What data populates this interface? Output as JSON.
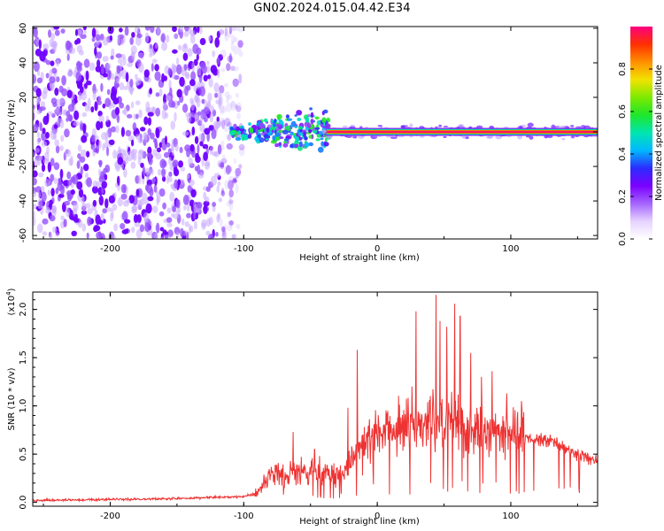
{
  "title": "GN02.2024.015.04.42.E34",
  "chart_data": [
    {
      "type": "heatmap",
      "xlabel": "Height of straight line (km)",
      "ylabel": "Frequency (Hz)",
      "xlim": [
        -258,
        165
      ],
      "ylim": [
        -62,
        61
      ],
      "x_ticks": [
        -200,
        -100,
        0,
        100
      ],
      "x_tick_labels": [
        "-200",
        "-100",
        "0",
        "100"
      ],
      "y_ticks": [
        60,
        40,
        20,
        0,
        -20,
        -40,
        -60
      ],
      "y_tick_labels": [
        "60",
        "40",
        "20",
        "0",
        "-20",
        "-40",
        "-60"
      ],
      "features": {
        "broadband_noise_region_x": [
          -258,
          -108
        ],
        "tone_frequency": 0,
        "tone_region_x": [
          -115,
          165
        ],
        "disturbed_segment_x": [
          -110,
          -35
        ]
      },
      "colorbar": {
        "label": "Normalized spectral amplitude",
        "range": [
          0,
          1
        ],
        "ticks": [
          0.0,
          0.2,
          0.4,
          0.6,
          0.8
        ],
        "tick_labels": [
          "0.0",
          "0.2",
          "0.4",
          "0.6",
          "0.8"
        ],
        "colormap": [
          "#ffffff",
          "#e6d3ff",
          "#a564ff",
          "#7a00ff",
          "#2c2cff",
          "#00b8ff",
          "#00e5b0",
          "#1ee62a",
          "#7dea00",
          "#f2e200",
          "#ff8f00",
          "#ff3000",
          "#ff007f"
        ]
      }
    },
    {
      "type": "line",
      "xlabel": "Height of straight line (km)",
      "ylabel": "SNR (10 * v/v)",
      "scale_note": "(x10",
      "scale_exponent": "4",
      "xlim": [
        -258,
        165
      ],
      "ylim": [
        -0.04,
        2.18
      ],
      "x_ticks": [
        -200,
        -100,
        0,
        100
      ],
      "x_tick_labels": [
        "-200",
        "-100",
        "0",
        "100"
      ],
      "y_ticks": [
        0.0,
        0.5,
        1.0,
        1.5,
        2.0
      ],
      "y_tick_labels": [
        "0.0",
        "0.5",
        "1.0",
        "1.5",
        "2.0"
      ],
      "color": "#ee3333",
      "envelope": {
        "x": [
          -258,
          -200,
          -150,
          -100,
          -90,
          -80,
          -60,
          -40,
          -25,
          -10,
          0,
          20,
          40,
          60,
          80,
          100,
          130,
          165
        ],
        "y": [
          0.02,
          0.03,
          0.04,
          0.06,
          0.1,
          0.28,
          0.3,
          0.32,
          0.3,
          0.62,
          0.72,
          0.78,
          0.85,
          0.82,
          0.75,
          0.7,
          0.62,
          0.42
        ]
      },
      "peaks": [
        {
          "x": -63,
          "y": 0.73
        },
        {
          "x": -47,
          "y": 0.55
        },
        {
          "x": -22,
          "y": 0.98
        },
        {
          "x": -15,
          "y": 1.58
        },
        {
          "x": 26,
          "y": 1.2
        },
        {
          "x": 29,
          "y": 1.98
        },
        {
          "x": 44,
          "y": 2.15
        },
        {
          "x": 47,
          "y": 1.88
        },
        {
          "x": 52,
          "y": 1.82
        },
        {
          "x": 58,
          "y": 2.06
        },
        {
          "x": 62,
          "y": 1.93
        },
        {
          "x": 70,
          "y": 1.55
        },
        {
          "x": 78,
          "y": 1.3
        },
        {
          "x": 86,
          "y": 1.36
        },
        {
          "x": 97,
          "y": 1.13
        },
        {
          "x": 108,
          "y": 1.05
        }
      ]
    }
  ]
}
